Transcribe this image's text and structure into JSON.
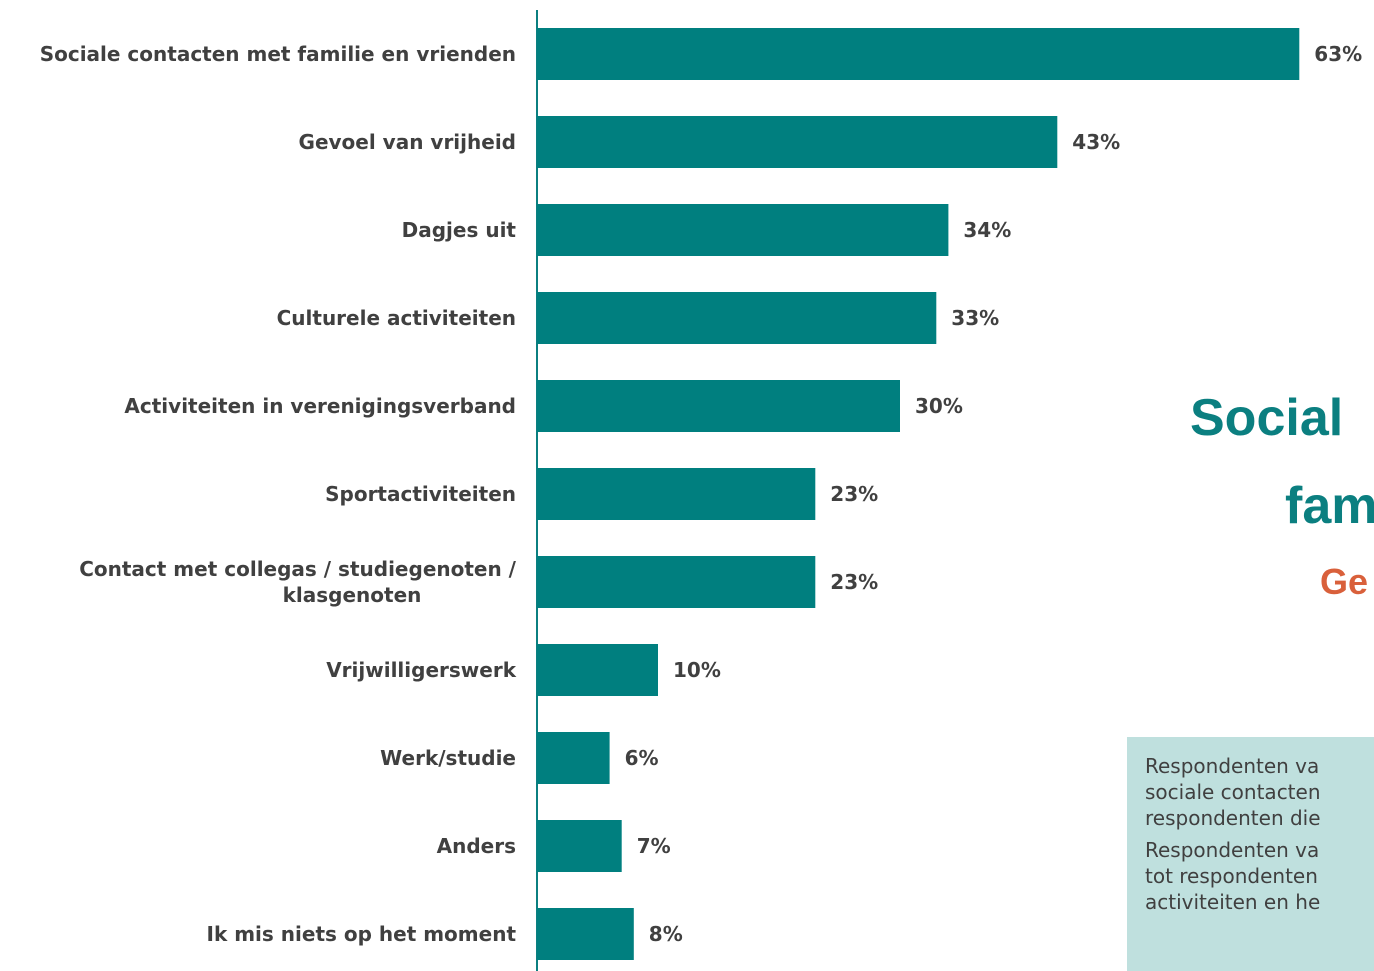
{
  "chart_data": {
    "type": "bar",
    "orientation": "horizontal",
    "categories": [
      "Sociale contacten met familie en vrienden",
      "Gevoel van vrijheid",
      "Dagjes uit",
      "Culturele activiteiten",
      "Activiteiten in verenigingsverband",
      "Sportactiviteiten",
      "Contact met collegas / studiegenoten / klasgenoten",
      "Vrijwilligerswerk",
      "Werk/studie",
      "Anders",
      "Ik mis niets op het moment"
    ],
    "category_lines": [
      [
        "Sociale contacten met familie en vrienden"
      ],
      [
        "Gevoel van vrijheid"
      ],
      [
        "Dagjes uit"
      ],
      [
        "Culturele activiteiten"
      ],
      [
        "Activiteiten in verenigingsverband"
      ],
      [
        "Sportactiviteiten"
      ],
      [
        "Contact met collegas / studiegenoten /",
        "klasgenoten"
      ],
      [
        "Vrijwilligerswerk"
      ],
      [
        "Werk/studie"
      ],
      [
        "Anders"
      ],
      [
        "Ik mis niets op het moment"
      ]
    ],
    "values": [
      63,
      43,
      34,
      33,
      30,
      23,
      23,
      10,
      6,
      7,
      8
    ],
    "value_labels": [
      "63%",
      "43%",
      "34%",
      "33%",
      "30%",
      "23%",
      "23%",
      "10%",
      "6%",
      "7%",
      "8%"
    ],
    "unit": "%",
    "bar_color": "#007f7f",
    "grid": false,
    "legend": "none"
  },
  "side": {
    "headline_line1": "Social",
    "headline_line2": "fam",
    "subhead": "Ge",
    "headline_color": "#0b7f80",
    "subhead_color": "#d9603b",
    "note_paragraph1": "Respondenten va\nsociale contacten\nrespondenten die",
    "note_paragraph2": "Respondenten va\ntot respondenten\nactiviteiten en he"
  }
}
